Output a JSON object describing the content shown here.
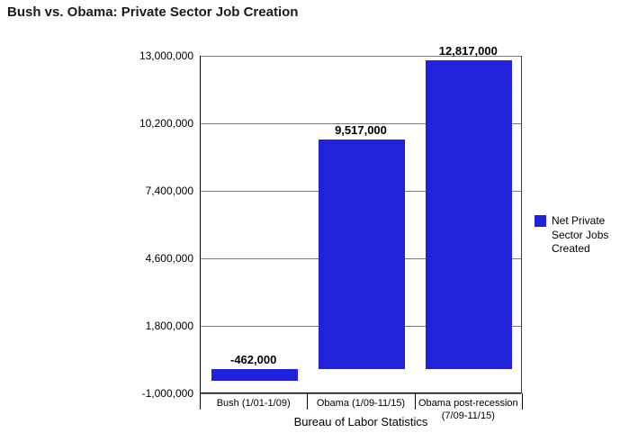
{
  "chart_data": {
    "type": "bar",
    "title": "Bush vs. Obama: Private Sector Job Creation",
    "xlabel": "Bureau of Labor Statistics",
    "ylabel": "",
    "legend_label": "Net Private Sector Jobs Created",
    "legend_position": "right",
    "grid": true,
    "categories": [
      "Bush (1/01-1/09)",
      "Obama (1/09-11/15)",
      "Obama post-recession (7/09-11/15)"
    ],
    "values": [
      -462000,
      9517000,
      12817000
    ],
    "value_labels": [
      "-462,000",
      "9,517,000",
      "12,817,000"
    ],
    "bar_color": "#2222dd",
    "ylim": [
      -1000000,
      13000000
    ],
    "ytick_values": [
      13000000,
      10200000,
      7400000,
      4600000,
      1800000,
      -1000000
    ],
    "ytick_labels": [
      "13,000,000",
      "10,200,000",
      "7,400,000",
      "4,600,000",
      "1,800,000",
      "-1,000,000"
    ]
  }
}
